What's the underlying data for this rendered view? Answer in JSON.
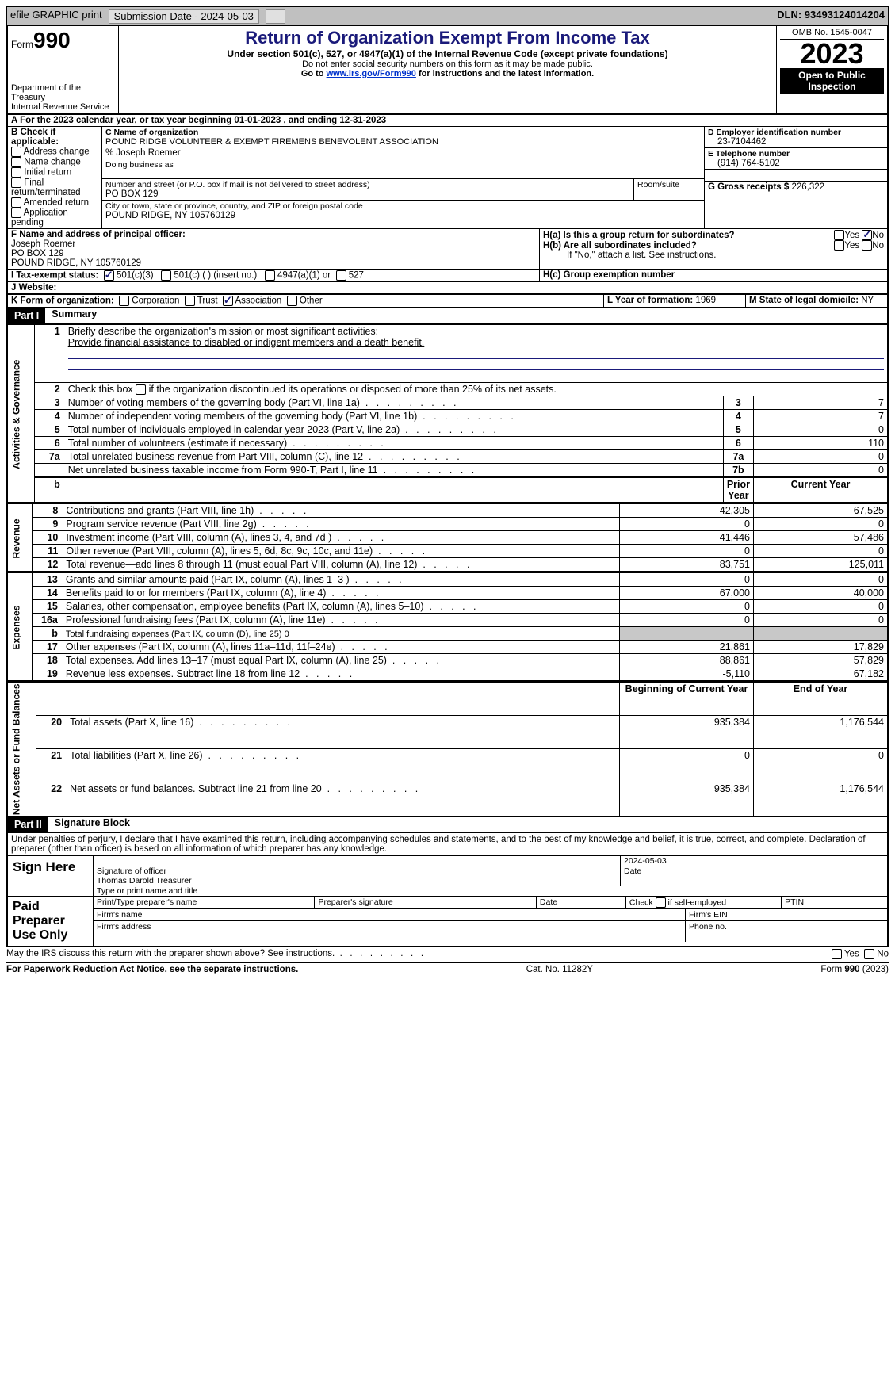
{
  "topbar": {
    "efile": "efile GRAPHIC print",
    "submission_label": "Submission Date - 2024-05-03",
    "dln_label": "DLN: 93493124014204"
  },
  "header": {
    "form_label": "Form",
    "form_number": "990",
    "dept1": "Department of the Treasury",
    "dept2": "Internal Revenue Service",
    "title": "Return of Organization Exempt From Income Tax",
    "subtitle": "Under section 501(c), 527, or 4947(a)(1) of the Internal Revenue Code (except private foundations)",
    "note1": "Do not enter social security numbers on this form as it may be made public.",
    "note2a": "Go to ",
    "note2link": "www.irs.gov/Form990",
    "note2b": " for instructions and the latest information.",
    "omb": "OMB No. 1545-0047",
    "year": "2023",
    "open_public": "Open to Public Inspection"
  },
  "sectionA": {
    "line": "A For the 2023 calendar year, or tax year beginning 01-01-2023   , and ending 12-31-2023"
  },
  "sectionB": {
    "label": "B Check if applicable:",
    "items": [
      "Address change",
      "Name change",
      "Initial return",
      "Final return/terminated",
      "Amended return",
      "Application pending"
    ]
  },
  "sectionC": {
    "label": "C Name of organization",
    "org_name": "POUND RIDGE VOLUNTEER & EXEMPT FIREMENS BENEVOLENT ASSOCIATION",
    "care_of": "% Joseph Roemer",
    "dba_label": "Doing business as",
    "street_label": "Number and street (or P.O. box if mail is not delivered to street address)",
    "street": "PO BOX 129",
    "room_label": "Room/suite",
    "city_label": "City or town, state or province, country, and ZIP or foreign postal code",
    "city": "POUND RIDGE, NY  105760129"
  },
  "sectionD": {
    "label": "D Employer identification number",
    "value": "23-7104462"
  },
  "sectionE": {
    "label": "E Telephone number",
    "value": "(914) 764-5102"
  },
  "sectionG": {
    "label": "G Gross receipts $",
    "value": "226,322"
  },
  "sectionF": {
    "label": "F  Name and address of principal officer:",
    "name": "Joseph Roemer",
    "addr1": "PO BOX 129",
    "addr2": "POUND RIDGE, NY  105760129"
  },
  "sectionH": {
    "ha": "H(a)  Is this a group return for subordinates?",
    "hb": "H(b)  Are all subordinates included?",
    "hnote": "If \"No,\" attach a list. See instructions.",
    "hc": "H(c)  Group exemption number",
    "yes": "Yes",
    "no": "No"
  },
  "sectionI": {
    "label": "I   Tax-exempt status:",
    "opt1": "501(c)(3)",
    "opt2": "501(c) (  ) (insert no.)",
    "opt3": "4947(a)(1) or",
    "opt4": "527"
  },
  "sectionJ": {
    "label": "J   Website:"
  },
  "sectionK": {
    "label": "K Form of organization:",
    "opts": [
      "Corporation",
      "Trust",
      "Association",
      "Other"
    ]
  },
  "sectionL": {
    "label": "L Year of formation:",
    "value": "1969"
  },
  "sectionM": {
    "label": "M State of legal domicile:",
    "value": "NY"
  },
  "partI": {
    "header": "Part I",
    "title": "Summary",
    "mission_label": "Briefly describe the organization's mission or most significant activities:",
    "mission": "Provide financial assistance to disabled or indigent members and a death benefit.",
    "line2": "Check this box      if the organization discontinued its operations or disposed of more than 25% of its net assets.",
    "prior_year": "Prior Year",
    "current_year": "Current Year",
    "boy": "Beginning of Current Year",
    "eoy": "End of Year",
    "governance_label": "Activities & Governance",
    "revenue_label": "Revenue",
    "expenses_label": "Expenses",
    "netassets_label": "Net Assets or Fund Balances",
    "lines_gov": [
      {
        "n": "3",
        "d": "Number of voting members of the governing body (Part VI, line 1a)",
        "code": "3",
        "v": "7"
      },
      {
        "n": "4",
        "d": "Number of independent voting members of the governing body (Part VI, line 1b)",
        "code": "4",
        "v": "7"
      },
      {
        "n": "5",
        "d": "Total number of individuals employed in calendar year 2023 (Part V, line 2a)",
        "code": "5",
        "v": "0"
      },
      {
        "n": "6",
        "d": "Total number of volunteers (estimate if necessary)",
        "code": "6",
        "v": "110"
      },
      {
        "n": "7a",
        "d": "Total unrelated business revenue from Part VIII, column (C), line 12",
        "code": "7a",
        "v": "0"
      },
      {
        "n": "",
        "d": "Net unrelated business taxable income from Form 990-T, Part I, line 11",
        "code": "7b",
        "v": "0"
      }
    ],
    "lines_rev": [
      {
        "n": "8",
        "d": "Contributions and grants (Part VIII, line 1h)",
        "py": "42,305",
        "cy": "67,525"
      },
      {
        "n": "9",
        "d": "Program service revenue (Part VIII, line 2g)",
        "py": "0",
        "cy": "0"
      },
      {
        "n": "10",
        "d": "Investment income (Part VIII, column (A), lines 3, 4, and 7d )",
        "py": "41,446",
        "cy": "57,486"
      },
      {
        "n": "11",
        "d": "Other revenue (Part VIII, column (A), lines 5, 6d, 8c, 9c, 10c, and 11e)",
        "py": "0",
        "cy": "0"
      },
      {
        "n": "12",
        "d": "Total revenue—add lines 8 through 11 (must equal Part VIII, column (A), line 12)",
        "py": "83,751",
        "cy": "125,011"
      }
    ],
    "lines_exp": [
      {
        "n": "13",
        "d": "Grants and similar amounts paid (Part IX, column (A), lines 1–3 )",
        "py": "0",
        "cy": "0"
      },
      {
        "n": "14",
        "d": "Benefits paid to or for members (Part IX, column (A), line 4)",
        "py": "67,000",
        "cy": "40,000"
      },
      {
        "n": "15",
        "d": "Salaries, other compensation, employee benefits (Part IX, column (A), lines 5–10)",
        "py": "0",
        "cy": "0"
      },
      {
        "n": "16a",
        "d": "Professional fundraising fees (Part IX, column (A), line 11e)",
        "py": "0",
        "cy": "0"
      },
      {
        "n": "b",
        "d": "Total fundraising expenses (Part IX, column (D), line 25) 0",
        "py": "",
        "cy": "",
        "grey": true
      },
      {
        "n": "17",
        "d": "Other expenses (Part IX, column (A), lines 11a–11d, 11f–24e)",
        "py": "21,861",
        "cy": "17,829"
      },
      {
        "n": "18",
        "d": "Total expenses. Add lines 13–17 (must equal Part IX, column (A), line 25)",
        "py": "88,861",
        "cy": "57,829"
      },
      {
        "n": "19",
        "d": "Revenue less expenses. Subtract line 18 from line 12",
        "py": "-5,110",
        "cy": "67,182"
      }
    ],
    "lines_net": [
      {
        "n": "20",
        "d": "Total assets (Part X, line 16)",
        "py": "935,384",
        "cy": "1,176,544"
      },
      {
        "n": "21",
        "d": "Total liabilities (Part X, line 26)",
        "py": "0",
        "cy": "0"
      },
      {
        "n": "22",
        "d": "Net assets or fund balances. Subtract line 21 from line 20",
        "py": "935,384",
        "cy": "1,176,544"
      }
    ]
  },
  "partII": {
    "header": "Part II",
    "title": "Signature Block",
    "perjury": "Under penalties of perjury, I declare that I have examined this return, including accompanying schedules and statements, and to the best of my knowledge and belief, it is true, correct, and complete. Declaration of preparer (other than officer) is based on all information of which preparer has any knowledge.",
    "sign_here": "Sign Here",
    "sig_officer": "Signature of officer",
    "date_label": "Date",
    "date_value": "2024-05-03",
    "officer_name": "Thomas Darold  Treasurer",
    "type_name": "Type or print name and title",
    "paid_prep": "Paid Preparer Use Only",
    "prep_name": "Print/Type preparer's name",
    "prep_sig": "Preparer's signature",
    "self_emp": "Check       if self-employed",
    "ptin": "PTIN",
    "firm_name": "Firm's name",
    "firm_ein": "Firm's EIN",
    "firm_addr": "Firm's address",
    "phone": "Phone no."
  },
  "footer": {
    "discuss": "May the IRS discuss this return with the preparer shown above? See instructions.",
    "yes": "Yes",
    "no": "No",
    "paperwork": "For Paperwork Reduction Act Notice, see the separate instructions.",
    "catno": "Cat. No. 11282Y",
    "formno": "Form 990 (2023)"
  }
}
